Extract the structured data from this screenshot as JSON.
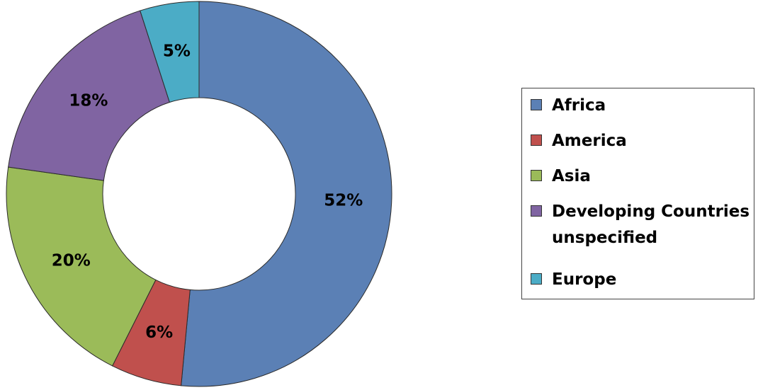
{
  "chart_data": {
    "type": "pie",
    "variant": "donut",
    "categories": [
      "Africa",
      "America",
      "Asia",
      "Developing Countries unspecified",
      "Europe"
    ],
    "values": [
      52,
      6,
      20,
      18,
      5
    ],
    "labels": [
      "52%",
      "6%",
      "20%",
      "18%",
      "5%"
    ],
    "colors": [
      "#5b80b5",
      "#c0504d",
      "#9bbb59",
      "#8064a2",
      "#4bacc6"
    ],
    "legend_position": "right",
    "grid": false
  },
  "legend": {
    "items": [
      {
        "label_lines": [
          "Africa"
        ],
        "color": "#5b80b5"
      },
      {
        "label_lines": [
          "America"
        ],
        "color": "#c0504d"
      },
      {
        "label_lines": [
          "Asia"
        ],
        "color": "#9bbb59"
      },
      {
        "label_lines": [
          "Developing Countries",
          "unspecified"
        ],
        "color": "#8064a2"
      },
      {
        "label_lines": [
          "Europe"
        ],
        "color": "#4bacc6"
      }
    ]
  }
}
